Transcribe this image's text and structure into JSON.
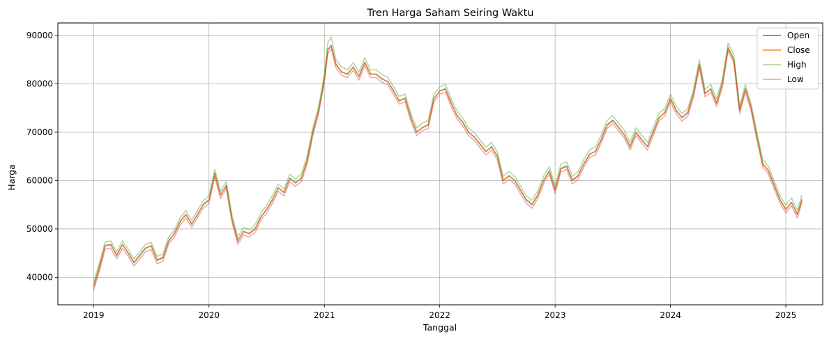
{
  "chart_data": {
    "type": "line",
    "title": "Tren Harga Saham Seiring Waktu",
    "xlabel": "Tanggal",
    "ylabel": "Harga",
    "xlim": [
      2018.69,
      2025.32
    ],
    "ylim": [
      34300,
      92600
    ],
    "x_ticks": [
      2019,
      2020,
      2021,
      2022,
      2023,
      2024,
      2025
    ],
    "x_tick_labels": [
      "2019",
      "2020",
      "2021",
      "2022",
      "2023",
      "2024",
      "2025"
    ],
    "y_ticks": [
      40000,
      50000,
      60000,
      70000,
      80000,
      90000
    ],
    "y_tick_labels": [
      "40000",
      "50000",
      "60000",
      "70000",
      "80000",
      "90000"
    ],
    "grid": true,
    "legend_position": "top-right",
    "x": [
      2019.0,
      2019.05,
      2019.1,
      2019.15,
      2019.2,
      2019.25,
      2019.3,
      2019.35,
      2019.4,
      2019.45,
      2019.5,
      2019.55,
      2019.6,
      2019.65,
      2019.7,
      2019.75,
      2019.8,
      2019.85,
      2019.9,
      2019.95,
      2020.0,
      2020.05,
      2020.1,
      2020.15,
      2020.2,
      2020.25,
      2020.3,
      2020.35,
      2020.4,
      2020.45,
      2020.5,
      2020.55,
      2020.6,
      2020.65,
      2020.7,
      2020.75,
      2020.8,
      2020.85,
      2020.9,
      2020.95,
      2021.0,
      2021.03,
      2021.06,
      2021.1,
      2021.15,
      2021.2,
      2021.25,
      2021.3,
      2021.35,
      2021.4,
      2021.45,
      2021.5,
      2021.55,
      2021.6,
      2021.65,
      2021.7,
      2021.75,
      2021.8,
      2021.85,
      2021.9,
      2021.95,
      2022.0,
      2022.05,
      2022.1,
      2022.15,
      2022.2,
      2022.25,
      2022.3,
      2022.35,
      2022.4,
      2022.45,
      2022.5,
      2022.55,
      2022.6,
      2022.65,
      2022.7,
      2022.75,
      2022.8,
      2022.85,
      2022.9,
      2022.95,
      2023.0,
      2023.05,
      2023.1,
      2023.15,
      2023.2,
      2023.25,
      2023.3,
      2023.35,
      2023.4,
      2023.45,
      2023.5,
      2023.55,
      2023.6,
      2023.65,
      2023.7,
      2023.75,
      2023.8,
      2023.85,
      2023.9,
      2023.95,
      2024.0,
      2024.05,
      2024.1,
      2024.15,
      2024.2,
      2024.25,
      2024.3,
      2024.35,
      2024.4,
      2024.45,
      2024.5,
      2024.55,
      2024.6,
      2024.65,
      2024.7,
      2024.75,
      2024.8,
      2024.85,
      2024.9,
      2024.95,
      2025.0,
      2025.05,
      2025.1,
      2025.14
    ],
    "series": [
      {
        "name": "Open",
        "color": "#1f77b4",
        "values": [
          38000,
          42000,
          46500,
          46800,
          44500,
          46800,
          45000,
          43000,
          44500,
          46000,
          46500,
          43500,
          44000,
          47500,
          49000,
          51500,
          53000,
          51000,
          53000,
          55000,
          56000,
          61500,
          57000,
          59000,
          52000,
          47500,
          49500,
          49000,
          50000,
          52500,
          54000,
          56000,
          58500,
          57500,
          60500,
          59500,
          60500,
          64000,
          70000,
          74500,
          81000,
          87000,
          88000,
          84000,
          82500,
          82000,
          83500,
          81500,
          84500,
          82000,
          82000,
          81000,
          80500,
          78500,
          76500,
          77000,
          73000,
          70000,
          71000,
          71500,
          77000,
          78500,
          79000,
          76000,
          73500,
          72000,
          70000,
          69000,
          67500,
          66000,
          67000,
          65000,
          60000,
          61000,
          60000,
          58000,
          56000,
          55000,
          57000,
          60000,
          62000,
          58000,
          62500,
          63000,
          60000,
          61000,
          63500,
          65500,
          66000,
          68500,
          71500,
          72500,
          71000,
          69500,
          67000,
          70000,
          68500,
          67000,
          70000,
          73000,
          74000,
          77000,
          74500,
          73000,
          74000,
          78000,
          84000,
          78000,
          79000,
          76000,
          80000,
          87500,
          85000,
          74500,
          79000,
          75000,
          69000,
          63500,
          62000,
          59000,
          56000,
          54000,
          55500,
          53000,
          56000
        ]
      },
      {
        "name": "Close",
        "color": "#ff7f0e",
        "values": [
          38200,
          42300,
          46600,
          46700,
          44600,
          46700,
          45100,
          43100,
          44600,
          46100,
          46400,
          43600,
          44100,
          47400,
          49100,
          51600,
          52900,
          51100,
          52900,
          55100,
          56100,
          61300,
          57100,
          58800,
          52100,
          47600,
          49400,
          49100,
          50100,
          52400,
          54100,
          56100,
          58400,
          57600,
          60400,
          59600,
          60400,
          64200,
          70200,
          74400,
          81200,
          87200,
          87800,
          84100,
          82400,
          82100,
          83400,
          81600,
          84400,
          82100,
          81900,
          81100,
          80400,
          78600,
          76400,
          77100,
          73100,
          70100,
          70900,
          71600,
          76900,
          78600,
          78900,
          76100,
          73400,
          72100,
          70100,
          68900,
          67600,
          66100,
          66900,
          65100,
          60100,
          60900,
          60100,
          58100,
          56100,
          55100,
          56900,
          60100,
          61900,
          58100,
          62400,
          62900,
          60100,
          61100,
          63400,
          65400,
          66100,
          68400,
          71400,
          72400,
          71100,
          69400,
          67100,
          69900,
          68400,
          67100,
          69900,
          72900,
          74100,
          76900,
          74400,
          73100,
          74100,
          77900,
          84100,
          78100,
          78900,
          76100,
          80100,
          87300,
          84900,
          74600,
          78900,
          75100,
          69100,
          63400,
          62100,
          59100,
          56100,
          54100,
          55400,
          53100,
          56200
        ]
      },
      {
        "name": "High",
        "color": "#2ca02c",
        "values": [
          39000,
          43000,
          47300,
          47500,
          45300,
          47500,
          45800,
          43800,
          45300,
          46800,
          47200,
          44300,
          44800,
          48300,
          49800,
          52300,
          53800,
          51800,
          53800,
          55800,
          56900,
          62300,
          57800,
          59800,
          52800,
          48300,
          50300,
          49800,
          50900,
          53300,
          54900,
          56900,
          59300,
          58300,
          61300,
          60300,
          61300,
          65000,
          71000,
          75300,
          82000,
          88500,
          89700,
          85000,
          83500,
          82900,
          84400,
          82400,
          85400,
          82900,
          82900,
          81900,
          81400,
          79400,
          77400,
          77900,
          73900,
          70900,
          71900,
          72400,
          77900,
          79400,
          79900,
          76900,
          74400,
          72900,
          70900,
          69900,
          68400,
          66900,
          67900,
          65900,
          60900,
          61900,
          60900,
          58900,
          56900,
          55900,
          57900,
          60900,
          62900,
          58900,
          63400,
          63900,
          60900,
          61900,
          64400,
          66400,
          66900,
          69400,
          72400,
          73400,
          71900,
          70400,
          67900,
          70900,
          69400,
          67900,
          70900,
          73900,
          74900,
          77900,
          75400,
          73900,
          74900,
          78900,
          85000,
          78900,
          79900,
          76900,
          80900,
          88500,
          85900,
          75400,
          79900,
          75900,
          69900,
          64400,
          62900,
          59900,
          56900,
          54900,
          56400,
          53900,
          57000
        ]
      },
      {
        "name": "Low",
        "color": "#d62728",
        "values": [
          37300,
          41300,
          45800,
          46000,
          43800,
          46000,
          44300,
          42300,
          43800,
          45300,
          45700,
          42800,
          43300,
          46800,
          48300,
          50800,
          52300,
          50300,
          52300,
          54300,
          55300,
          60700,
          56300,
          58300,
          51300,
          46800,
          48800,
          48300,
          49300,
          51800,
          53300,
          55300,
          57800,
          56800,
          59800,
          58800,
          59800,
          63300,
          69300,
          73800,
          80300,
          86300,
          87300,
          83300,
          81800,
          81300,
          82800,
          80800,
          83800,
          81300,
          81300,
          80300,
          79800,
          77800,
          75800,
          76300,
          72300,
          69300,
          70300,
          70800,
          76300,
          77800,
          78300,
          75300,
          72800,
          71300,
          69300,
          68300,
          66800,
          65300,
          66300,
          64300,
          59300,
          60300,
          59300,
          57300,
          55300,
          54300,
          56300,
          59300,
          61300,
          57300,
          61800,
          62300,
          59300,
          60300,
          62800,
          64800,
          65300,
          67800,
          70800,
          71800,
          70300,
          68800,
          66300,
          69300,
          67800,
          66300,
          69300,
          72300,
          73300,
          76300,
          73800,
          72300,
          73300,
          77300,
          83300,
          77300,
          78300,
          75300,
          79300,
          86800,
          84300,
          73800,
          78300,
          74300,
          68300,
          62800,
          61300,
          58300,
          55300,
          53300,
          54800,
          52300,
          55500
        ]
      }
    ]
  }
}
